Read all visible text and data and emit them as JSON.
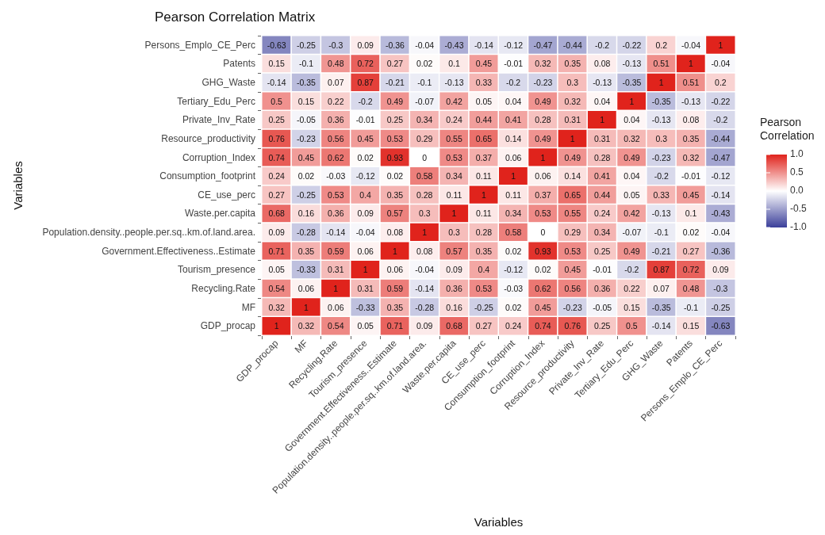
{
  "chart_data": {
    "type": "heatmap",
    "title": "Pearson Correlation Matrix",
    "xlabel": "Variables",
    "ylabel": "Variables",
    "clabel": "Pearson Correlation",
    "categories": [
      "GDP_procap",
      "MF",
      "Recycling.Rate",
      "Tourism_presence",
      "Government.Effectiveness..Estimate",
      "Population.density..people.per.sq..km.of.land.area.",
      "Waste.per.capita",
      "CE_use_perc",
      "Consumption_footprint",
      "Corruption_Index",
      "Resource_productivity",
      "Private_Inv_Rate",
      "Tertiary_Edu_Perc",
      "GHG_Waste",
      "Patents",
      "Persons_Emplo_CE_Perc"
    ],
    "y_categories": [
      "Persons_Emplo_CE_Perc",
      "Patents",
      "GHG_Waste",
      "Tertiary_Edu_Perc",
      "Private_Inv_Rate",
      "Resource_productivity",
      "Corruption_Index",
      "Consumption_footprint",
      "CE_use_perc",
      "Waste.per.capita",
      "Population.density..people.per.sq..km.of.land.area.",
      "Government.Effectiveness..Estimate",
      "Tourism_presence",
      "Recycling.Rate",
      "MF",
      "GDP_procap"
    ],
    "cells": [
      [
        -0.63,
        -0.25,
        -0.3,
        0.09,
        -0.36,
        -0.04,
        -0.43,
        -0.14,
        -0.12,
        -0.47,
        -0.44,
        -0.2,
        -0.22,
        0.2,
        -0.04,
        1
      ],
      [
        0.15,
        -0.1,
        0.48,
        0.72,
        0.27,
        0.02,
        0.1,
        0.45,
        -0.01,
        0.32,
        0.35,
        0.08,
        -0.13,
        0.51,
        1,
        -0.04
      ],
      [
        -0.14,
        -0.35,
        0.07,
        0.87,
        -0.21,
        -0.1,
        -0.13,
        0.33,
        -0.2,
        -0.23,
        0.3,
        -0.13,
        -0.35,
        1,
        0.51,
        0.2
      ],
      [
        0.5,
        0.15,
        0.22,
        -0.2,
        0.49,
        -0.07,
        0.42,
        0.05,
        0.04,
        0.49,
        0.32,
        0.04,
        1,
        -0.35,
        -0.13,
        -0.22
      ],
      [
        0.25,
        -0.05,
        0.36,
        -0.01,
        0.25,
        0.34,
        0.24,
        0.44,
        0.41,
        0.28,
        0.31,
        1,
        0.04,
        -0.13,
        0.08,
        -0.2
      ],
      [
        0.76,
        -0.23,
        0.56,
        0.45,
        0.53,
        0.29,
        0.55,
        0.65,
        0.14,
        0.49,
        1,
        0.31,
        0.32,
        0.3,
        0.35,
        -0.44
      ],
      [
        0.74,
        0.45,
        0.62,
        0.02,
        0.93,
        0,
        0.53,
        0.37,
        0.06,
        1,
        0.49,
        0.28,
        0.49,
        -0.23,
        0.32,
        -0.47
      ],
      [
        0.24,
        0.02,
        -0.03,
        -0.12,
        0.02,
        0.58,
        0.34,
        0.11,
        1,
        0.06,
        0.14,
        0.41,
        0.04,
        -0.2,
        -0.01,
        -0.12
      ],
      [
        0.27,
        -0.25,
        0.53,
        0.4,
        0.35,
        0.28,
        0.11,
        1,
        0.11,
        0.37,
        0.65,
        0.44,
        0.05,
        0.33,
        0.45,
        -0.14
      ],
      [
        0.68,
        0.16,
        0.36,
        0.09,
        0.57,
        0.3,
        1,
        0.11,
        0.34,
        0.53,
        0.55,
        0.24,
        0.42,
        -0.13,
        0.1,
        -0.43
      ],
      [
        0.09,
        -0.28,
        -0.14,
        -0.04,
        0.08,
        1,
        0.3,
        0.28,
        0.58,
        0,
        0.29,
        0.34,
        -0.07,
        -0.1,
        0.02,
        -0.04
      ],
      [
        0.71,
        0.35,
        0.59,
        0.06,
        1,
        0.08,
        0.57,
        0.35,
        0.02,
        0.93,
        0.53,
        0.25,
        0.49,
        -0.21,
        0.27,
        -0.36
      ],
      [
        0.05,
        -0.33,
        0.31,
        1,
        0.06,
        -0.04,
        0.09,
        0.4,
        -0.12,
        0.02,
        0.45,
        -0.01,
        -0.2,
        0.87,
        0.72,
        0.09
      ],
      [
        0.54,
        0.06,
        1,
        0.31,
        0.59,
        -0.14,
        0.36,
        0.53,
        -0.03,
        0.62,
        0.56,
        0.36,
        0.22,
        0.07,
        0.48,
        -0.3
      ],
      [
        0.32,
        1,
        0.06,
        -0.33,
        0.35,
        -0.28,
        0.16,
        -0.25,
        0.02,
        0.45,
        -0.23,
        -0.05,
        0.15,
        -0.35,
        -0.1,
        -0.25
      ],
      [
        1,
        0.32,
        0.54,
        0.05,
        0.71,
        0.09,
        0.68,
        0.27,
        0.24,
        0.74,
        0.76,
        0.25,
        0.5,
        -0.14,
        0.15,
        -0.63
      ]
    ],
    "clim": [
      -1,
      1
    ],
    "cticks": [
      {
        "value": 1,
        "label": "1.0"
      },
      {
        "value": 0.5,
        "label": "0.5"
      },
      {
        "value": 0,
        "label": "0.0"
      },
      {
        "value": -0.5,
        "label": "-0.5"
      },
      {
        "value": -1,
        "label": "-1.0"
      }
    ],
    "data_labels": true
  }
}
